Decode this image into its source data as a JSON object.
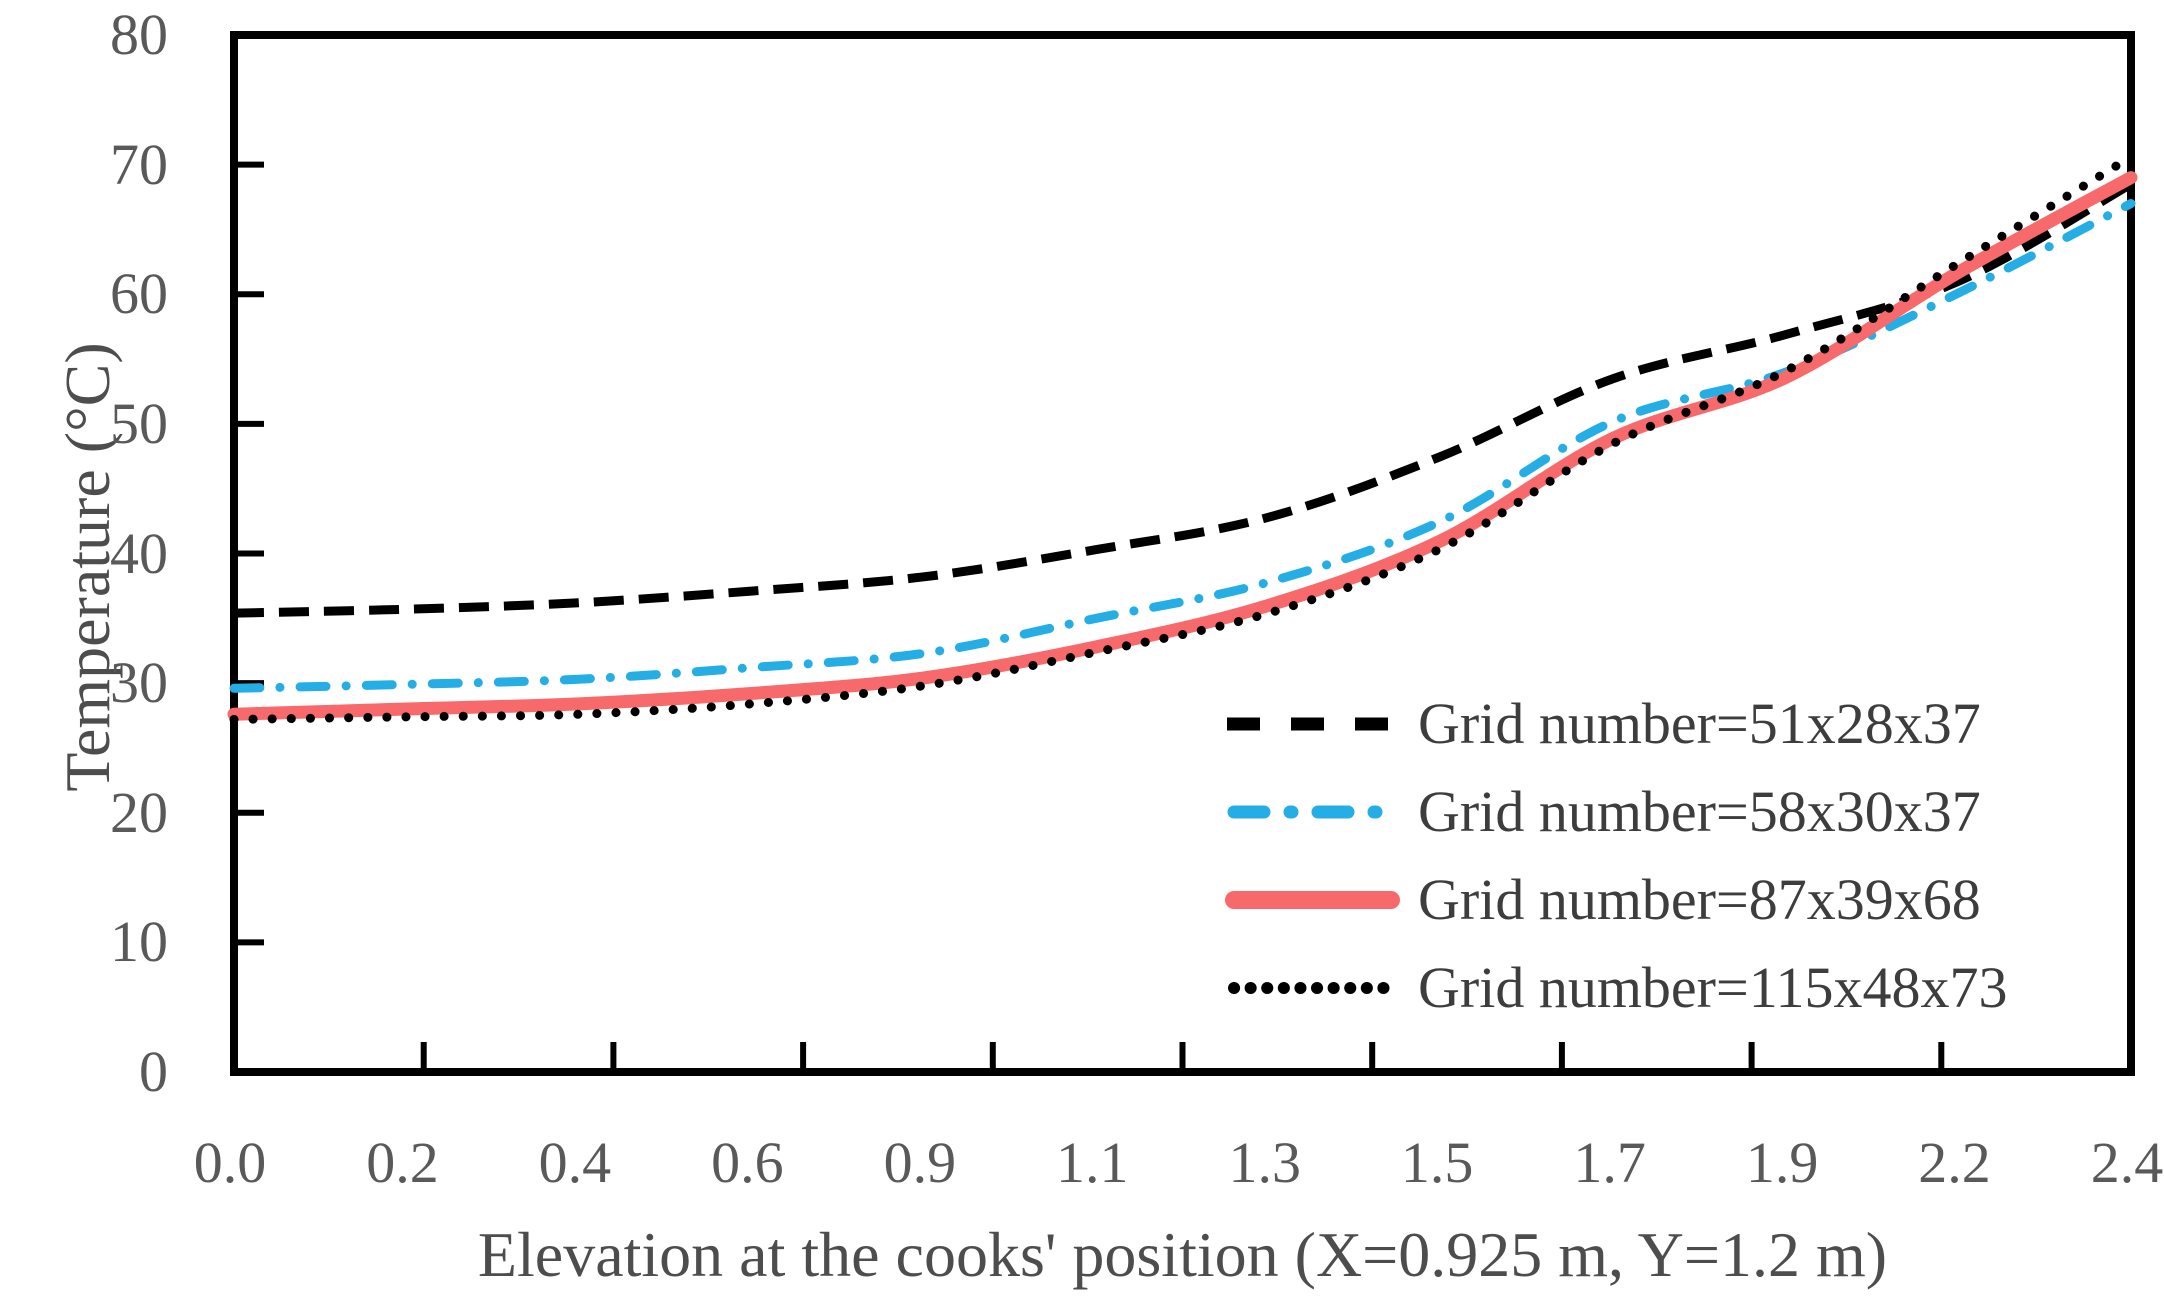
{
  "chart_data": {
    "type": "line",
    "title": "",
    "xlabel": "Elevation at the cooks' position (X=0.925 m, Y=1.2 m)",
    "ylabel": "Temperature (°C)",
    "x_tick_labels": [
      "0.0",
      "0.2",
      "0.4",
      "0.6",
      "0.9",
      "1.1",
      "1.3",
      "1.5",
      "1.7",
      "1.9",
      "2.2",
      "2.4"
    ],
    "y_ticks": [
      0,
      10,
      20,
      30,
      40,
      50,
      60,
      70,
      80
    ],
    "ylim": [
      0,
      80
    ],
    "grid": false,
    "legend_position": "inside-lower-right",
    "axis_color": "#000000",
    "tick_label_color": "#595959",
    "series": [
      {
        "name": "Grid number=51x28x37",
        "color": "#000000",
        "style": "dashed",
        "values": [
          35.4,
          35.7,
          36.2,
          37.1,
          38.2,
          40.3,
          42.8,
          47.5,
          53.5,
          56.9,
          61.0,
          68.5
        ]
      },
      {
        "name": "Grid number=58x30x37",
        "color": "#25AEE6",
        "style": "dash-dot",
        "values": [
          29.6,
          29.9,
          30.3,
          31.2,
          32.3,
          35.0,
          37.8,
          42.5,
          50.2,
          54.0,
          60.1,
          67.0
        ]
      },
      {
        "name": "Grid number=87x39x68",
        "color": "#F8696B",
        "style": "solid",
        "values": [
          27.6,
          28.0,
          28.4,
          29.2,
          30.4,
          32.8,
          36.0,
          41.0,
          48.9,
          53.6,
          61.7,
          69.0
        ]
      },
      {
        "name": "Grid number=115x48x73",
        "color": "#000000",
        "style": "dotted",
        "values": [
          27.2,
          27.4,
          27.6,
          28.4,
          29.8,
          32.4,
          35.4,
          40.4,
          48.5,
          54.1,
          62.4,
          70.6
        ]
      }
    ]
  }
}
